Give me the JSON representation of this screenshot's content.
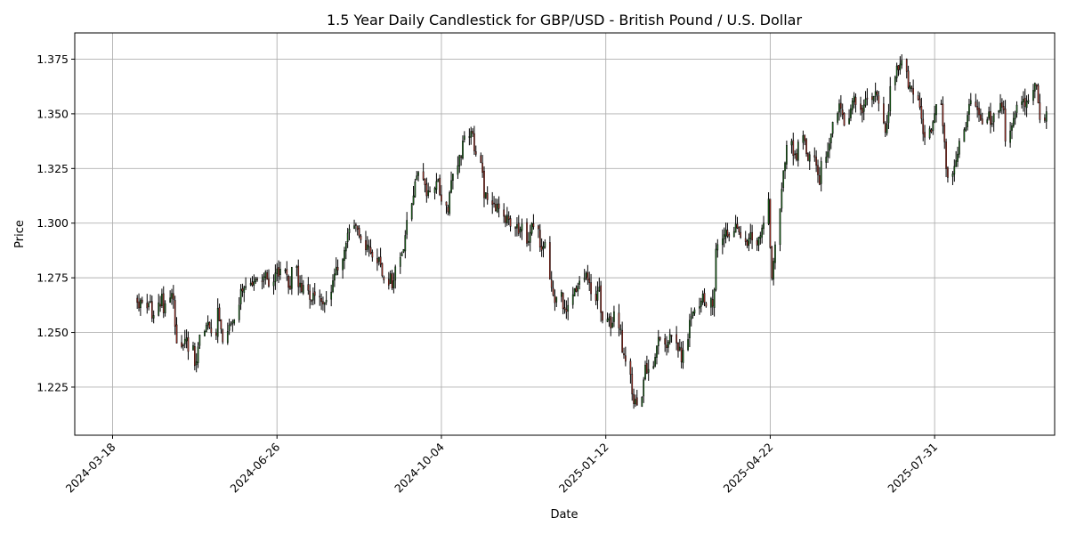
{
  "chart_data": {
    "type": "candlestick",
    "title": "1.5 Year Daily Candlestick for GBP/USD - British Pound / U.S. Dollar",
    "xlabel": "Date",
    "ylabel": "Price",
    "grid": true,
    "x_range": [
      "2024-02-24",
      "2025-10-12"
    ],
    "ylim": [
      1.203,
      1.387
    ],
    "x_ticks": [
      "2024-03-18",
      "2024-06-26",
      "2024-10-04",
      "2025-01-12",
      "2025-04-22",
      "2025-07-31"
    ],
    "y_ticks": [
      "1.225",
      "1.250",
      "1.275",
      "1.300",
      "1.325",
      "1.350",
      "1.375"
    ],
    "start_date": "2024-04-02",
    "closes": [
      1.2637,
      1.2612,
      1.2649,
      1.2638,
      1.2612,
      1.2633,
      1.2642,
      1.2565,
      1.2578,
      1.2636,
      1.262,
      1.2676,
      1.259,
      1.2632,
      1.2658,
      1.2679,
      1.2651,
      1.2528,
      1.2451,
      1.2435,
      1.2442,
      1.2468,
      1.2475,
      1.2413,
      1.244,
      1.2348,
      1.2366,
      1.2434,
      1.2489,
      1.2505,
      1.2533,
      1.2548,
      1.2521,
      1.2498,
      1.2487,
      1.2611,
      1.2552,
      1.2515,
      1.2457,
      1.2505,
      1.2534,
      1.254,
      1.2549,
      1.2558,
      1.2625,
      1.2697,
      1.2689,
      1.2707,
      1.271,
      1.2725,
      1.2716,
      1.2733,
      1.2745,
      1.2742,
      1.2733,
      1.2755,
      1.2776,
      1.2743,
      1.2712,
      1.2731,
      1.2772,
      1.2791,
      1.2757,
      1.279,
      1.2786,
      1.2764,
      1.2706,
      1.27,
      1.2798,
      1.2802,
      1.2709,
      1.2726,
      1.2687,
      1.2716,
      1.2692,
      1.2651,
      1.2643,
      1.2679,
      1.2669,
      1.2662,
      1.2641,
      1.263,
      1.2637,
      1.2648,
      1.2685,
      1.2737,
      1.2768,
      1.2799,
      1.2785,
      1.2834,
      1.2876,
      1.2908,
      1.2954,
      1.2973,
      1.2988,
      1.299,
      1.2972,
      1.2942,
      1.2924,
      1.2878,
      1.2901,
      1.2891,
      1.2862,
      1.2844,
      1.2818,
      1.2843,
      1.2812,
      1.2759,
      1.2741,
      1.2717,
      1.2768,
      1.2703,
      1.2737,
      1.28,
      1.2843,
      1.2861,
      1.288,
      1.2944,
      1.3013,
      1.3089,
      1.3125,
      1.319,
      1.3216,
      1.3232,
      1.3201,
      1.3175,
      1.3125,
      1.3149,
      1.3144,
      1.316,
      1.3191,
      1.32,
      1.3131,
      1.31,
      1.3081,
      1.3052,
      1.314,
      1.3195,
      1.3225,
      1.3263,
      1.3311,
      1.3303,
      1.3376,
      1.3399,
      1.3396,
      1.342,
      1.341,
      1.333,
      1.3315,
      1.3277,
      1.3232,
      1.3116,
      1.314,
      1.3107,
      1.3085,
      1.3089,
      1.3056,
      1.3088,
      1.3067,
      1.3031,
      1.3003,
      1.3037,
      1.3017,
      1.2985,
      1.2977,
      1.2994,
      1.2953,
      1.2972,
      1.2996,
      1.2908,
      1.2917,
      1.2958,
      1.2999,
      1.2983,
      1.2974,
      1.289,
      1.2876,
      1.2892,
      1.2912,
      1.2744,
      1.2705,
      1.2671,
      1.2636,
      1.2662,
      1.2684,
      1.2609,
      1.2606,
      1.2595,
      1.2624,
      1.2673,
      1.27,
      1.2687,
      1.2713,
      1.2735,
      1.2749,
      1.2771,
      1.274,
      1.2727,
      1.2677,
      1.2645,
      1.269,
      1.2708,
      1.2591,
      1.2555,
      1.2561,
      1.2568,
      1.252,
      1.2543,
      1.2595,
      1.252,
      1.2516,
      1.241,
      1.2397,
      1.2368,
      1.2308,
      1.2218,
      1.2174,
      1.2195,
      1.2167,
      1.2204,
      1.2283,
      1.2351,
      1.2313,
      1.2331,
      1.2345,
      1.2387,
      1.2438,
      1.2478,
      1.2468,
      1.2446,
      1.243,
      1.2457,
      1.2491,
      1.2486,
      1.2452,
      1.2416,
      1.2433,
      1.2365,
      1.2419,
      1.2468,
      1.2556,
      1.2573,
      1.2594,
      1.2604,
      1.2618,
      1.2644,
      1.2676,
      1.2637,
      1.262,
      1.2655,
      1.262,
      1.2696,
      1.2881,
      1.2902,
      1.2928,
      1.2947,
      1.297,
      1.2941,
      1.2937,
      1.2962,
      1.2996,
      1.2977,
      1.2959,
      1.2935,
      1.2915,
      1.2897,
      1.2931,
      1.2957,
      1.2923,
      1.29,
      1.2936,
      1.2943,
      1.2978,
      1.3,
      1.311,
      1.2888,
      1.2748,
      1.2826,
      1.2901,
      1.3066,
      1.3155,
      1.324,
      1.3276,
      1.3356,
      1.3374,
      1.3309,
      1.3317,
      1.329,
      1.3371,
      1.3401,
      1.3377,
      1.3317,
      1.3287,
      1.3313,
      1.3302,
      1.3264,
      1.3221,
      1.3177,
      1.3282,
      1.3302,
      1.3326,
      1.3363,
      1.3409,
      1.3462,
      1.3502,
      1.3546,
      1.3524,
      1.3496,
      1.3447,
      1.3479,
      1.3524,
      1.3559,
      1.3581,
      1.3542,
      1.352,
      1.3504,
      1.3541,
      1.3568,
      1.3572,
      1.3565,
      1.358,
      1.3602,
      1.3588,
      1.3548,
      1.3459,
      1.3416,
      1.3452,
      1.3509,
      1.3625,
      1.3667,
      1.3719,
      1.3701,
      1.3728,
      1.3745,
      1.3694,
      1.362,
      1.3628,
      1.3616,
      1.3589,
      1.3565,
      1.353,
      1.3478,
      1.3409,
      1.3393,
      1.3432,
      1.3417,
      1.3464,
      1.3501,
      1.3543,
      1.3543,
      1.3445,
      1.3372,
      1.3249,
      1.3209,
      1.3226,
      1.326,
      1.3286,
      1.3316,
      1.3375,
      1.3428,
      1.3437,
      1.3493,
      1.3544,
      1.3561,
      1.3535,
      1.3519,
      1.3495,
      1.3474,
      1.3454,
      1.3473,
      1.3509,
      1.3451,
      1.3457,
      1.35,
      1.3514,
      1.3548,
      1.3531,
      1.3519,
      1.3375,
      1.3422,
      1.3446,
      1.3479,
      1.3501,
      1.354,
      1.3555,
      1.3567,
      1.3534,
      1.3557,
      1.3562,
      1.3608,
      1.364,
      1.3627,
      1.355,
      1.3474,
      1.347,
      1.351
    ]
  }
}
